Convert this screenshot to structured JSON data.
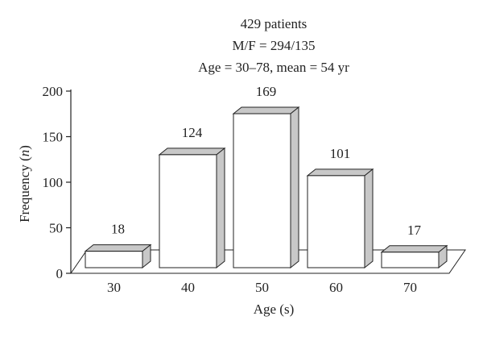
{
  "chart_data": {
    "type": "bar",
    "title_lines": [
      "429 patients",
      "M/F = 294/135",
      "Age = 30–78, mean = 54 yr"
    ],
    "categories": [
      "30",
      "40",
      "50",
      "60",
      "70"
    ],
    "values": [
      18,
      124,
      169,
      101,
      17
    ],
    "data_labels": [
      "18",
      "124",
      "169",
      "101",
      "17"
    ],
    "xlabel": "Age (s)",
    "ylabel_main": "Frequency (",
    "ylabel_italic": "n",
    "ylabel_close": ")",
    "ylim": [
      0,
      200
    ],
    "yticks": [
      0,
      50,
      100,
      150,
      200
    ],
    "grid": false,
    "style": "3d-bar",
    "colors": {
      "front": "#ffffff",
      "top": "#c8c8c8",
      "side": "#c8c8c8",
      "stroke": "#222222"
    }
  }
}
